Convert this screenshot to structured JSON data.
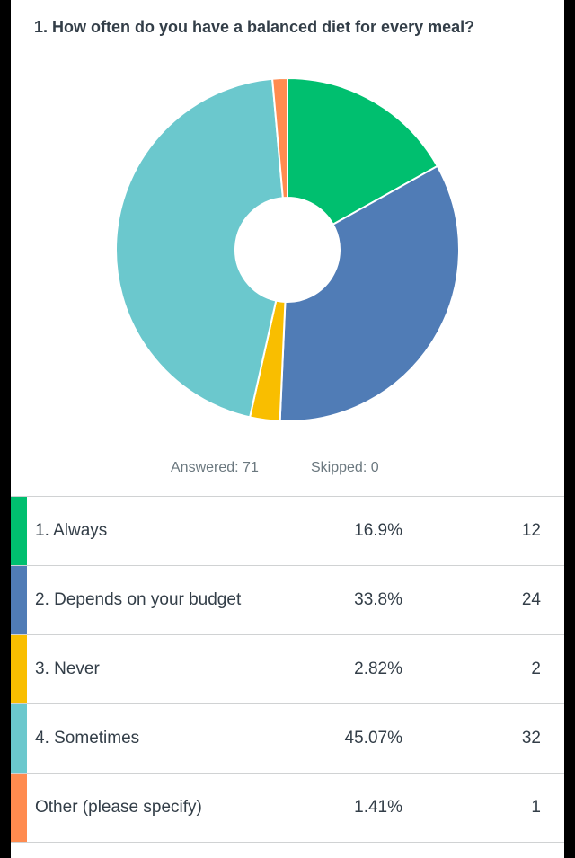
{
  "question": {
    "title": "1. How often do you have a balanced diet for every meal?"
  },
  "summary": {
    "answered": "Answered: 71",
    "skipped": "Skipped: 0"
  },
  "rows": [
    {
      "label": "1. Always",
      "percent": "16.9%",
      "count": "12",
      "color": "#00bf6f"
    },
    {
      "label": "2. Depends on your budget",
      "percent": "33.8%",
      "count": "24",
      "color": "#507cb6"
    },
    {
      "label": "3. Never",
      "percent": "2.82%",
      "count": "2",
      "color": "#f9be00"
    },
    {
      "label": "4. Sometimes",
      "percent": "45.07%",
      "count": "32",
      "color": "#6bc8cd"
    },
    {
      "label": "Other (please specify)",
      "percent": "1.41%",
      "count": "1",
      "color": "#ff8b4f"
    }
  ],
  "chart_data": {
    "type": "pie",
    "variant": "donut",
    "categories": [
      "1. Always",
      "2. Depends on your budget",
      "3. Never",
      "4. Sometimes",
      "Other (please specify)"
    ],
    "values": [
      16.9,
      33.8,
      2.82,
      45.07,
      1.41
    ],
    "counts": [
      12,
      24,
      2,
      32,
      1
    ],
    "colors": [
      "#00bf6f",
      "#507cb6",
      "#f9be00",
      "#6bc8cd",
      "#ff8b4f"
    ],
    "start": "12 o'clock",
    "direction": "clockwise"
  }
}
